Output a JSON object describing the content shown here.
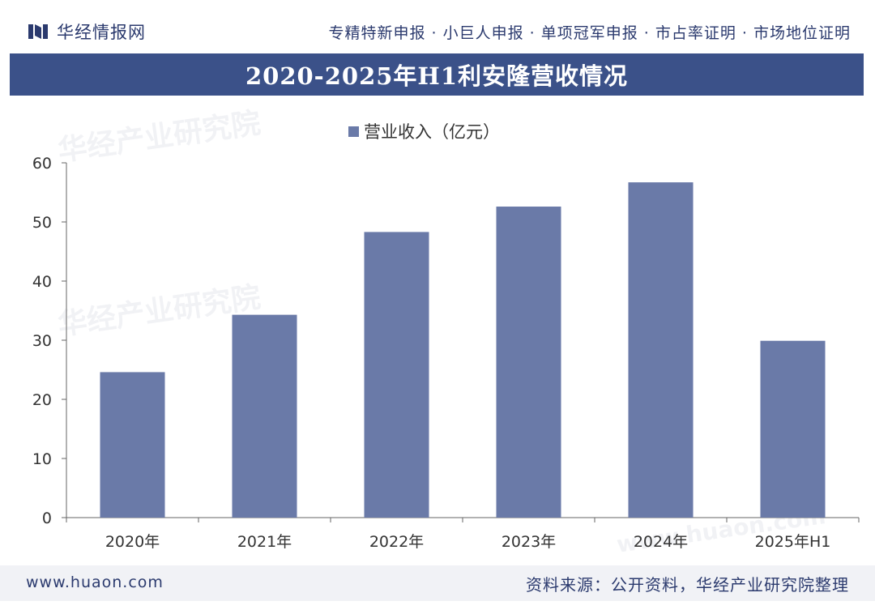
{
  "header": {
    "logo_text": "华经情报网",
    "services": "专精特新申报 · 小巨人申报 · 单项冠军申报 · 市占率证明 · 市场地位证明"
  },
  "title": "2020-2025年H1利安隆营收情况",
  "watermarks": [
    "华经产业研究院",
    "华经产业研究院",
    "www.huaon.com"
  ],
  "footer": {
    "url": "www.huaon.com",
    "source": "资料来源：公开资料，华经产业研究院整理"
  },
  "colors": {
    "title_bar": "#3b5189",
    "bar": "#6a7aa8",
    "brand_text": "#2b3a6e"
  },
  "chart_data": {
    "type": "bar",
    "categories": [
      "2020年",
      "2021年",
      "2022年",
      "2023年",
      "2024年",
      "2025年H1"
    ],
    "series": [
      {
        "name": "营业收入（亿元）",
        "values": [
          24.6,
          34.3,
          48.3,
          52.6,
          56.7,
          29.9
        ]
      }
    ],
    "ylim": [
      0,
      60
    ],
    "yticks": [
      0,
      10,
      20,
      30,
      40,
      50,
      60
    ],
    "legend_position": "top-center",
    "grid": false
  }
}
